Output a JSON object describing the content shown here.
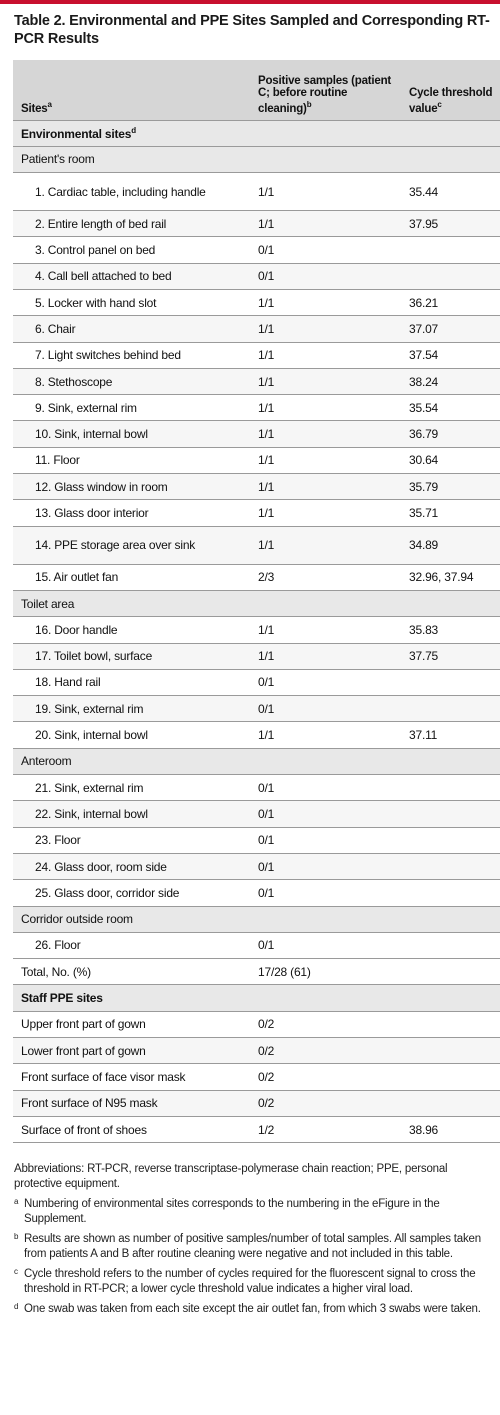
{
  "caption": "Table 2. Environmental and PPE Sites Sampled and Corresponding RT-PCR Results",
  "headers": {
    "sites": "Sites",
    "sites_sup": "a",
    "positive": "Positive samples (patient C; before routine cleaning)",
    "positive_sup": "b",
    "ct": "Cycle threshold value",
    "ct_sup": "c"
  },
  "environmental": {
    "label": "Environmental sites",
    "sup": "d"
  },
  "patients_room": {
    "label": "Patient's room",
    "rows": [
      {
        "site": "1. Cardiac table, including handle",
        "pos": "1/1",
        "ct": "35.44"
      },
      {
        "site": "2. Entire length of bed rail",
        "pos": "1/1",
        "ct": "37.95"
      },
      {
        "site": "3. Control panel on bed",
        "pos": "0/1",
        "ct": ""
      },
      {
        "site": "4. Call bell attached to bed",
        "pos": "0/1",
        "ct": ""
      },
      {
        "site": "5. Locker with hand slot",
        "pos": "1/1",
        "ct": "36.21"
      },
      {
        "site": "6. Chair",
        "pos": "1/1",
        "ct": "37.07"
      },
      {
        "site": "7. Light switches behind bed",
        "pos": "1/1",
        "ct": "37.54"
      },
      {
        "site": "8. Stethoscope",
        "pos": "1/1",
        "ct": "38.24"
      },
      {
        "site": "9. Sink, external rim",
        "pos": "1/1",
        "ct": "35.54"
      },
      {
        "site": "10. Sink, internal bowl",
        "pos": "1/1",
        "ct": "36.79"
      },
      {
        "site": "11. Floor",
        "pos": "1/1",
        "ct": "30.64"
      },
      {
        "site": "12. Glass window in room",
        "pos": "1/1",
        "ct": "35.79"
      },
      {
        "site": "13. Glass door interior",
        "pos": "1/1",
        "ct": "35.71"
      },
      {
        "site": "14. PPE storage area over sink",
        "pos": "1/1",
        "ct": "34.89"
      },
      {
        "site": "15. Air outlet fan",
        "pos": "2/3",
        "ct": "32.96, 37.94"
      }
    ]
  },
  "toilet": {
    "label": "Toilet area",
    "rows": [
      {
        "site": "16. Door handle",
        "pos": "1/1",
        "ct": "35.83"
      },
      {
        "site": "17. Toilet bowl, surface",
        "pos": "1/1",
        "ct": "37.75"
      },
      {
        "site": "18. Hand rail",
        "pos": "0/1",
        "ct": ""
      },
      {
        "site": "19. Sink, external rim",
        "pos": "0/1",
        "ct": ""
      },
      {
        "site": "20. Sink, internal bowl",
        "pos": "1/1",
        "ct": "37.11"
      }
    ]
  },
  "anteroom": {
    "label": "Anteroom",
    "rows": [
      {
        "site": "21. Sink, external rim",
        "pos": "0/1",
        "ct": ""
      },
      {
        "site": "22. Sink, internal bowl",
        "pos": "0/1",
        "ct": ""
      },
      {
        "site": "23. Floor",
        "pos": "0/1",
        "ct": ""
      },
      {
        "site": "24. Glass door, room side",
        "pos": "0/1",
        "ct": ""
      },
      {
        "site": "25. Glass door, corridor side",
        "pos": "0/1",
        "ct": ""
      }
    ]
  },
  "corridor": {
    "label": "Corridor outside room",
    "rows": [
      {
        "site": "26. Floor",
        "pos": "0/1",
        "ct": ""
      }
    ]
  },
  "total": {
    "label": "Total, No. (%)",
    "pos": "17/28 (61)"
  },
  "staff": {
    "label": "Staff PPE sites",
    "rows": [
      {
        "site": "Upper front part of gown",
        "pos": "0/2",
        "ct": ""
      },
      {
        "site": "Lower front part of gown",
        "pos": "0/2",
        "ct": ""
      },
      {
        "site": "Front surface of face visor mask",
        "pos": "0/2",
        "ct": ""
      },
      {
        "site": "Front surface of N95 mask",
        "pos": "0/2",
        "ct": ""
      },
      {
        "site": "Surface of front of shoes",
        "pos": "1/2",
        "ct": "38.96"
      }
    ]
  },
  "notes": {
    "abbreviations": "Abbreviations: RT-PCR, reverse transcriptase-polymerase chain reaction; PPE, personal protective equipment.",
    "a_mark": "a",
    "a": "Numbering of environmental sites corresponds to the numbering in the eFigure in the Supplement.",
    "b_mark": "b",
    "b": "Results are shown as number of positive samples/number of total samples. All samples taken from patients A and B after routine cleaning were negative and not included in this table.",
    "c_mark": "c",
    "c": "Cycle threshold refers to the number of cycles required for the fluorescent signal to cross the threshold in RT-PCR; a lower cycle threshold value indicates a higher viral load.",
    "d_mark": "d",
    "d": "One swab was taken from each site except the air outlet fan, from which 3 swabs were taken."
  }
}
